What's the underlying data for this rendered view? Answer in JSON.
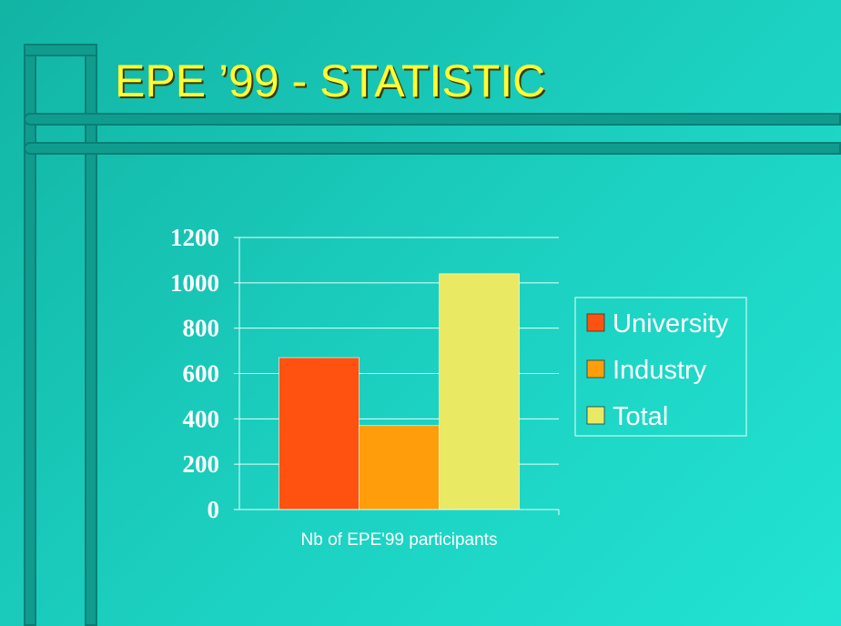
{
  "slide": {
    "title": "EPE ’99 - STATISTIC",
    "colors": {
      "title": "#ffff33",
      "frame": "#0f9c8f",
      "background": "#1cc8b8"
    }
  },
  "chart_data": {
    "type": "bar",
    "categories": [
      "Nb of EPE'99 participants"
    ],
    "series": [
      {
        "name": "University",
        "values": [
          670
        ],
        "color": "#ff5210"
      },
      {
        "name": "Industry",
        "values": [
          370
        ],
        "color": "#ff9e0a"
      },
      {
        "name": "Total",
        "values": [
          1040
        ],
        "color": "#e9e964"
      }
    ],
    "yticks": [
      "0",
      "200",
      "400",
      "600",
      "800",
      "1000",
      "1200"
    ],
    "ylim": [
      0,
      1200
    ],
    "grid": true,
    "legend": "right",
    "title": "",
    "xlabel": "",
    "ylabel": ""
  }
}
